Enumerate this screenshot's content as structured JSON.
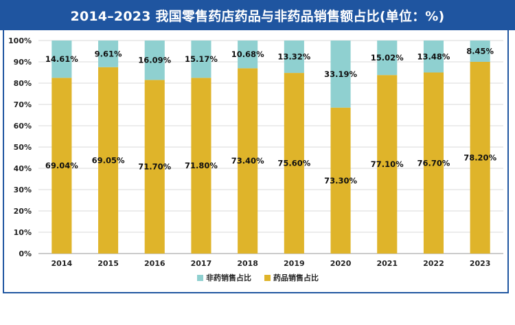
{
  "title": "2014–2023 我国零售药店药品与非药品销售额占比(单位：%)",
  "colors": {
    "banner": "#1f55a0",
    "drug": "#dfb42a",
    "non_drug": "#8fd0d0",
    "grid": "#d9d9d9",
    "axis": "#999999"
  },
  "chart_data": {
    "type": "bar",
    "stacked": true,
    "categories": [
      "2014",
      "2015",
      "2016",
      "2017",
      "2018",
      "2019",
      "2020",
      "2021",
      "2022",
      "2023"
    ],
    "series": [
      {
        "name": "药品销售占比",
        "color": "#dfb42a",
        "values": [
          82.5,
          87.5,
          81.5,
          82.5,
          87.0,
          84.8,
          68.5,
          83.8,
          85.0,
          90.0
        ],
        "labels": [
          "69.04%",
          "69.05%",
          "71.70%",
          "71.80%",
          "73.40%",
          "75.60%",
          "73.30%",
          "77.10%",
          "76.70%",
          "78.20%"
        ]
      },
      {
        "name": "非药销售占比",
        "color": "#8fd0d0",
        "values": [
          17.5,
          12.5,
          18.5,
          17.5,
          13.0,
          15.2,
          31.5,
          16.2,
          15.0,
          10.0
        ],
        "labels": [
          "14.61%",
          "9.61%",
          "16.09%",
          "15.17%",
          "10.68%",
          "13.32%",
          "33.19%",
          "15.02%",
          "13.48%",
          "8.45%"
        ]
      }
    ],
    "y_ticks": [
      "0%",
      "10%",
      "20%",
      "30%",
      "40%",
      "50%",
      "60%",
      "70%",
      "80%",
      "90%",
      "100%"
    ],
    "ylim": [
      0,
      100
    ],
    "grid": true,
    "legend": "bottom-center",
    "legend_order": [
      "非药销售占比",
      "药品销售占比"
    ]
  }
}
